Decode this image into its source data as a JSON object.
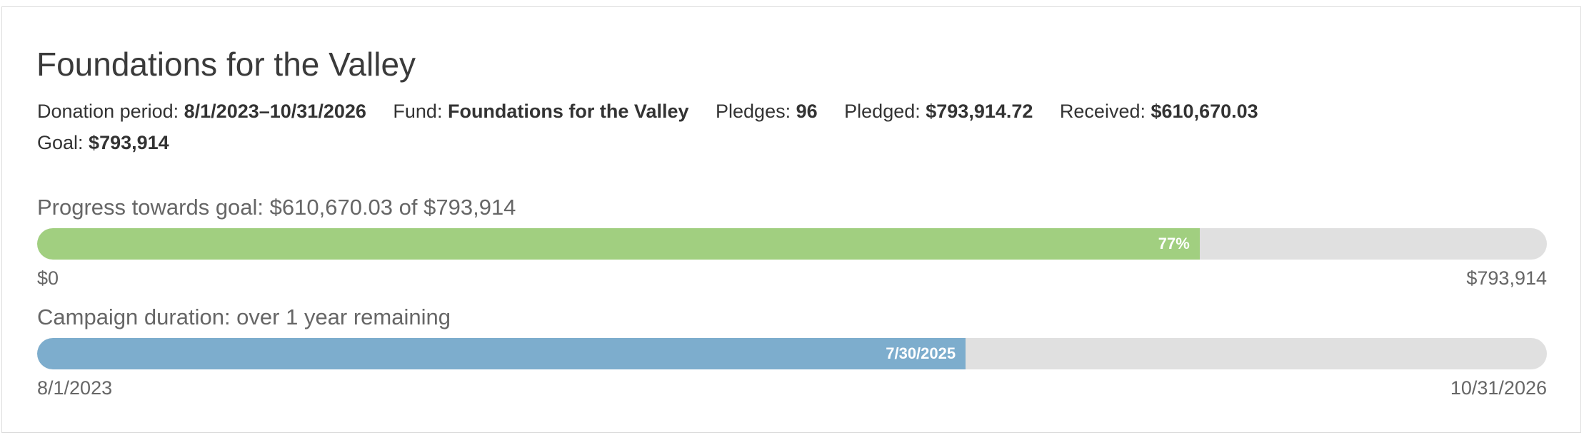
{
  "campaign": {
    "title": "Foundations for the Valley",
    "meta": {
      "donation_period_label": "Donation period: ",
      "donation_period_value": "8/1/2023–10/31/2026",
      "fund_label": "Fund: ",
      "fund_value": "Foundations for the Valley",
      "pledges_label": "Pledges: ",
      "pledges_value": "96",
      "pledged_label": "Pledged: ",
      "pledged_value": "$793,914.72",
      "received_label": "Received: ",
      "received_value": "$610,670.03",
      "goal_label": "Goal: ",
      "goal_value": "$793,914"
    }
  },
  "goal_progress": {
    "label": "Progress towards goal: $610,670.03 of $793,914",
    "fraction": 0.77,
    "bar_text": "77%",
    "start_label": "$0",
    "end_label": "$793,914",
    "color": "#a1cf80"
  },
  "duration_progress": {
    "label": "Campaign duration: over 1 year remaining",
    "fraction": 0.615,
    "bar_text": "7/30/2025",
    "start_label": "8/1/2023",
    "end_label": "10/31/2026",
    "color": "#7dadcd"
  }
}
